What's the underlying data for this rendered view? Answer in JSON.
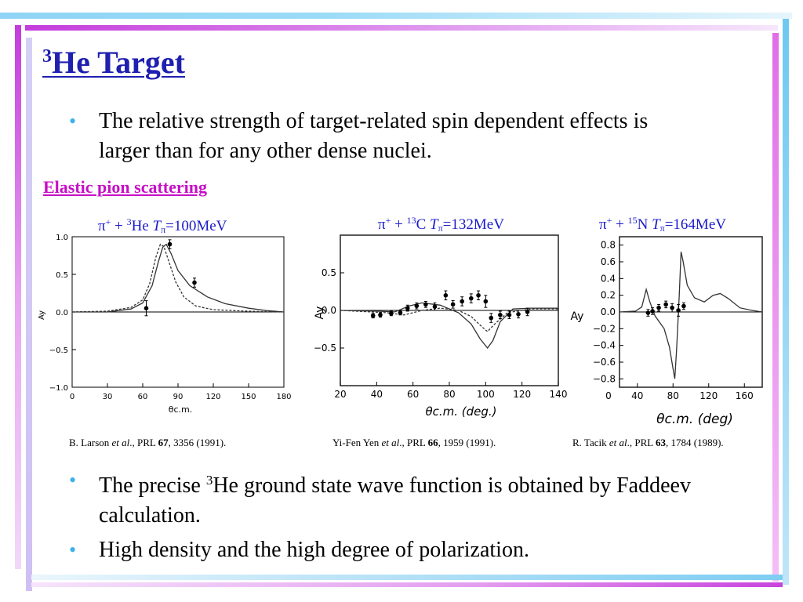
{
  "slide": {
    "title_sup": "3",
    "title_main": "He Target",
    "bullet1": "The relative strength of target-related spin dependent effects is larger than for any other dense nuclei.",
    "section_heading": "Elastic pion scattering",
    "bullet2_pre": "The precise ",
    "bullet2_sup": "3",
    "bullet2_post": "He ground state wave function is obtained by Faddeev calculation.",
    "bullet3": "High density and the high degree of polarization.",
    "colors": {
      "title": "#1f1fb0",
      "section": "#c60fc6",
      "bullet": "#3fb1ea",
      "chart_title": "#1a1acc"
    }
  },
  "citations": [
    {
      "author": "B. Larson ",
      "etal": "et al",
      "journal": "., PRL ",
      "vol": "67",
      "rest": ", 3356 (1991)."
    },
    {
      "author": "Yi-Fen Yen ",
      "etal": "et al",
      "journal": "., PRL ",
      "vol": "66",
      "rest": ", 1959 (1991)."
    },
    {
      "author": "R. Tacik ",
      "etal": "et al",
      "journal": "., PRL ",
      "vol": "63",
      "rest": ", 1784 (1989)."
    }
  ],
  "chart_data": [
    {
      "type": "line",
      "title": {
        "pi": "π",
        "pisup": "+",
        "plus": " + ",
        "isosup": "3",
        "nucleus": "He ",
        "T": "T",
        "Tsub": "π",
        "energy": "=100MeV"
      },
      "xlabel": "θc.m.",
      "ylabel": "Ay",
      "xlim": [
        0,
        180
      ],
      "ylim": [
        -1.0,
        1.0
      ],
      "xticks": [
        0,
        30,
        60,
        90,
        120,
        150,
        180
      ],
      "yticks": [
        1.0,
        0.5,
        0.0,
        -0.5,
        -1.0
      ],
      "ytick_labels": [
        "1.0",
        "0.5",
        "0.0",
        "−0.5",
        "−1.0"
      ],
      "series": [
        {
          "style": "solid",
          "points": [
            [
              0,
              0
            ],
            [
              30,
              0
            ],
            [
              50,
              0.04
            ],
            [
              60,
              0.12
            ],
            [
              68,
              0.35
            ],
            [
              73,
              0.65
            ],
            [
              77,
              0.86
            ],
            [
              80,
              0.9
            ],
            [
              84,
              0.78
            ],
            [
              90,
              0.55
            ],
            [
              100,
              0.35
            ],
            [
              115,
              0.2
            ],
            [
              130,
              0.11
            ],
            [
              150,
              0.05
            ],
            [
              165,
              0.02
            ],
            [
              180,
              0
            ]
          ]
        },
        {
          "style": "dashed",
          "points": [
            [
              0,
              0
            ],
            [
              30,
              0.01
            ],
            [
              50,
              0.06
            ],
            [
              60,
              0.16
            ],
            [
              66,
              0.38
            ],
            [
              71,
              0.72
            ],
            [
              75,
              0.9
            ],
            [
              78,
              0.87
            ],
            [
              82,
              0.68
            ],
            [
              88,
              0.4
            ],
            [
              95,
              0.2
            ],
            [
              105,
              0.08
            ],
            [
              120,
              0.03
            ],
            [
              150,
              0.01
            ],
            [
              180,
              0
            ]
          ]
        },
        {
          "style": "points",
          "points": [
            [
              63,
              0.05
            ],
            [
              83,
              0.9
            ],
            [
              104,
              0.39
            ]
          ],
          "errors": [
            0.1,
            0.06,
            0.06
          ]
        }
      ]
    },
    {
      "type": "line",
      "title": {
        "pi": "π",
        "pisup": "+",
        "plus": " + ",
        "isosup": "13",
        "nucleus": "C ",
        "T": "T",
        "Tsub": "π",
        "energy": "=132MeV"
      },
      "xlabel": "θc.m. (deg.)",
      "ylabel": "Ay",
      "xlim": [
        20,
        140
      ],
      "ylim": [
        -1.0,
        1.0
      ],
      "xticks": [
        20,
        40,
        60,
        80,
        100,
        120,
        140
      ],
      "yticks": [
        0.5,
        0.0,
        -0.5
      ],
      "ytick_labels": [
        "0.5",
        "0.0",
        "−0.5"
      ],
      "series": [
        {
          "style": "solid",
          "points": [
            [
              20,
              0
            ],
            [
              40,
              -0.01
            ],
            [
              50,
              -0.02
            ],
            [
              58,
              0.06
            ],
            [
              65,
              0.1
            ],
            [
              75,
              0.07
            ],
            [
              85,
              -0.03
            ],
            [
              92,
              -0.18
            ],
            [
              97,
              -0.38
            ],
            [
              101,
              -0.5
            ],
            [
              104,
              -0.4
            ],
            [
              108,
              -0.15
            ],
            [
              115,
              0.02
            ],
            [
              125,
              0.03
            ],
            [
              140,
              0.03
            ]
          ]
        },
        {
          "style": "dashed",
          "points": [
            [
              20,
              0
            ],
            [
              45,
              -0.03
            ],
            [
              55,
              -0.06
            ],
            [
              65,
              0
            ],
            [
              75,
              0.03
            ],
            [
              85,
              0
            ],
            [
              92,
              -0.08
            ],
            [
              98,
              -0.22
            ],
            [
              101,
              -0.28
            ],
            [
              105,
              -0.18
            ],
            [
              112,
              -0.03
            ],
            [
              125,
              0.02
            ],
            [
              140,
              0.02
            ]
          ]
        },
        {
          "style": "points",
          "points": [
            [
              38,
              -0.07
            ],
            [
              42,
              -0.06
            ],
            [
              48,
              -0.04
            ],
            [
              53,
              -0.03
            ],
            [
              57,
              0.03
            ],
            [
              62,
              0.06
            ],
            [
              67,
              0.08
            ],
            [
              72,
              0.05
            ],
            [
              78,
              0.2
            ],
            [
              82,
              0.08
            ],
            [
              87,
              0.12
            ],
            [
              92,
              0.16
            ],
            [
              96,
              0.2
            ],
            [
              100,
              0.12
            ],
            [
              103,
              -0.1
            ],
            [
              108,
              -0.06
            ],
            [
              113,
              -0.06
            ],
            [
              118,
              -0.05
            ],
            [
              123,
              -0.02
            ]
          ],
          "errors": [
            0.03,
            0.03,
            0.03,
            0.03,
            0.04,
            0.04,
            0.04,
            0.05,
            0.06,
            0.05,
            0.06,
            0.06,
            0.06,
            0.08,
            0.06,
            0.05,
            0.05,
            0.05,
            0.05
          ]
        }
      ]
    },
    {
      "type": "line",
      "title": {
        "pi": "π",
        "pisup": "+",
        "plus": " + ",
        "isosup": "15",
        "nucleus": "N ",
        "T": "T",
        "Tsub": "π",
        "energy": "=164MeV"
      },
      "xlabel": "θc.m. (deg)",
      "ylabel": "Ay",
      "xlim": [
        20,
        180
      ],
      "ylim": [
        -0.9,
        0.9
      ],
      "xticks": [
        40,
        80,
        120,
        160
      ],
      "xtick_labels": [
        "0",
        "40",
        "80",
        "120",
        "160"
      ],
      "xtick_values": [
        0,
        40,
        80,
        120,
        160
      ],
      "yticks": [
        0.8,
        0.6,
        0.4,
        0.2,
        0.0,
        -0.2,
        -0.4,
        -0.6,
        -0.8
      ],
      "ytick_labels": [
        "0.8",
        "0.6",
        "0.4",
        "0.2",
        "0.0",
        "−0.2",
        "−0.4",
        "−0.6",
        "−0.8"
      ],
      "series": [
        {
          "style": "solid",
          "points": [
            [
              20,
              0
            ],
            [
              38,
              0.01
            ],
            [
              45,
              0.06
            ],
            [
              50,
              0.27
            ],
            [
              54,
              0.12
            ],
            [
              60,
              -0.05
            ],
            [
              70,
              -0.2
            ],
            [
              76,
              -0.42
            ],
            [
              80,
              -0.68
            ],
            [
              82,
              -0.8
            ],
            [
              84,
              -0.45
            ],
            [
              87,
              0.2
            ],
            [
              89,
              0.72
            ],
            [
              91,
              0.62
            ],
            [
              96,
              0.32
            ],
            [
              104,
              0.17
            ],
            [
              115,
              0.12
            ],
            [
              125,
              0.2
            ],
            [
              133,
              0.22
            ],
            [
              142,
              0.16
            ],
            [
              155,
              0.05
            ],
            [
              168,
              0.02
            ],
            [
              180,
              0
            ]
          ]
        },
        {
          "style": "points",
          "points": [
            [
              52,
              -0.01
            ],
            [
              57,
              0.01
            ],
            [
              64,
              0.05
            ],
            [
              72,
              0.09
            ],
            [
              79,
              0.05
            ],
            [
              86,
              0.02
            ],
            [
              92,
              0.07
            ]
          ],
          "errors": [
            0.04,
            0.04,
            0.04,
            0.04,
            0.05,
            0.07,
            0.04
          ]
        }
      ]
    }
  ]
}
